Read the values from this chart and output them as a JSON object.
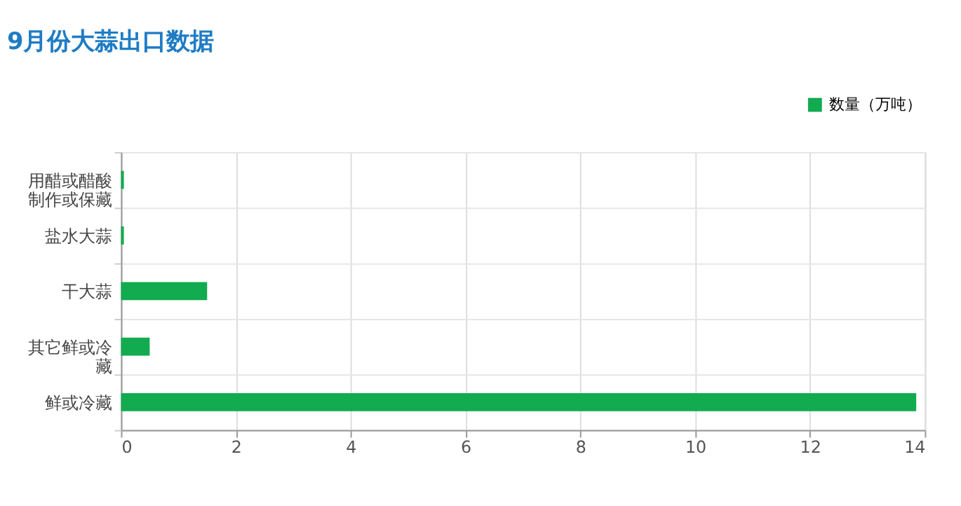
{
  "chart_data": {
    "type": "bar",
    "orientation": "horizontal",
    "title": "9月份大蒜出口数据",
    "categories": [
      "用醋或醋酸制作或保藏",
      "盐水大蒜",
      "干大蒜",
      "其它鲜或冷藏",
      "鲜或冷藏"
    ],
    "series": [
      {
        "name": "数量（万吨）",
        "color": "#12ab4f",
        "values": [
          0.05,
          0.05,
          1.5,
          0.5,
          13.85
        ]
      }
    ],
    "xlim": [
      0,
      14
    ],
    "xticks": [
      0,
      2,
      4,
      6,
      8,
      10,
      12,
      14
    ],
    "grid": true,
    "legend": "top right"
  }
}
